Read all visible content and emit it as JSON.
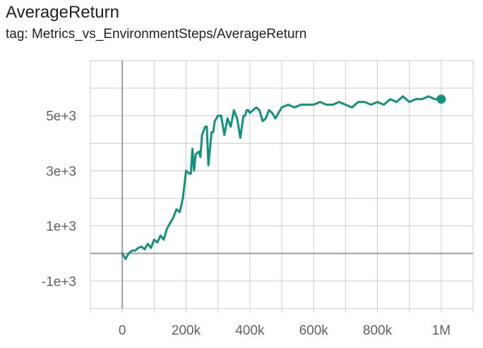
{
  "header": {
    "title": "AverageReturn",
    "subtitle": "tag: Metrics_vs_EnvironmentSteps/AverageReturn"
  },
  "colors": {
    "series": "#12927e",
    "grid": "#cccccc",
    "zero_axis": "#9e9e9e",
    "tick_text": "#616161"
  },
  "chart_data": {
    "type": "line",
    "title": "AverageReturn",
    "subtitle": "tag: Metrics_vs_EnvironmentSteps/AverageReturn",
    "xlabel": "",
    "ylabel": "",
    "xlim": [
      -100000,
      1100000
    ],
    "ylim": [
      -2000,
      7000
    ],
    "x_ticks": [
      0,
      200000,
      400000,
      600000,
      800000,
      1000000
    ],
    "x_tick_labels": [
      "0",
      "200k",
      "400k",
      "600k",
      "800k",
      "1M"
    ],
    "y_ticks": [
      -1000,
      1000,
      3000,
      5000
    ],
    "y_tick_labels": [
      "-1e+3",
      "1e+3",
      "3e+3",
      "5e+3"
    ],
    "grid": true,
    "series": [
      {
        "x": [
          0,
          10000,
          20000,
          30000,
          40000,
          50000,
          60000,
          70000,
          80000,
          90000,
          100000,
          110000,
          120000,
          130000,
          140000,
          150000,
          160000,
          170000,
          180000,
          190000,
          200000,
          210000,
          215000,
          220000,
          225000,
          230000,
          240000,
          245000,
          250000,
          260000,
          265000,
          270000,
          280000,
          285000,
          290000,
          300000,
          310000,
          320000,
          330000,
          340000,
          350000,
          360000,
          370000,
          380000,
          385000,
          390000,
          395000,
          400000,
          410000,
          420000,
          430000,
          440000,
          450000,
          460000,
          470000,
          480000,
          500000,
          520000,
          540000,
          560000,
          580000,
          600000,
          620000,
          640000,
          660000,
          680000,
          700000,
          720000,
          740000,
          760000,
          780000,
          800000,
          820000,
          840000,
          860000,
          880000,
          900000,
          920000,
          940000,
          960000,
          980000,
          1000000
        ],
        "y": [
          0,
          -200,
          0,
          100,
          100,
          200,
          250,
          150,
          350,
          200,
          500,
          400,
          650,
          500,
          900,
          1100,
          1300,
          1600,
          1500,
          2000,
          3000,
          2900,
          2900,
          3800,
          3000,
          3600,
          3700,
          3500,
          4300,
          4600,
          4600,
          3200,
          4400,
          4400,
          4800,
          5000,
          5000,
          4300,
          4900,
          4600,
          5200,
          4900,
          4200,
          5000,
          5000,
          5200,
          5200,
          5100,
          5200,
          5300,
          5200,
          4800,
          4900,
          5200,
          5100,
          4900,
          5300,
          5400,
          5300,
          5400,
          5400,
          5400,
          5500,
          5400,
          5400,
          5500,
          5400,
          5300,
          5500,
          5500,
          5400,
          5500,
          5400,
          5600,
          5500,
          5700,
          5500,
          5600,
          5600,
          5700,
          5600,
          5600
        ]
      }
    ]
  }
}
